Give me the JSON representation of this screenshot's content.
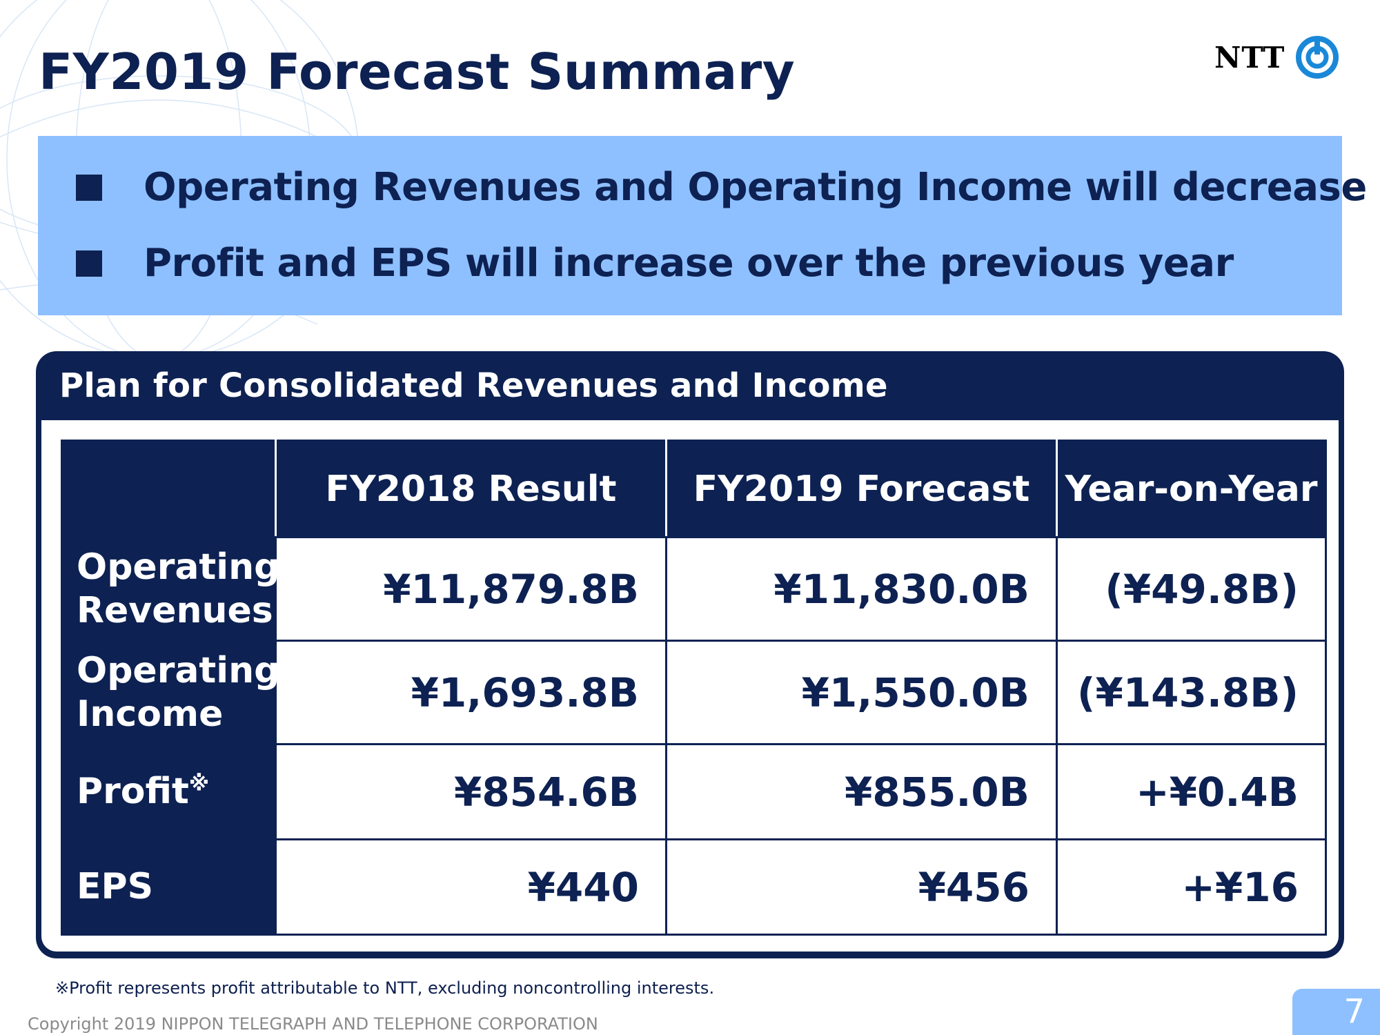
{
  "slide": {
    "title": "FY2019 Forecast Summary",
    "logo_text": "NTT",
    "bullets": [
      "Operating Revenues and Operating Income will decrease",
      "Profit and EPS will increase over the previous year"
    ],
    "plan_header": "Plan for Consolidated Revenues and Income",
    "table": {
      "columns": [
        "",
        "FY2018 Result",
        "FY2019 Forecast",
        "Year-on-Year"
      ],
      "rows": [
        {
          "label_line1": "Operating",
          "label_line2": "Revenues",
          "fy2018": "¥11,879.8B",
          "fy2019": "¥11,830.0B",
          "yoy": "(¥49.8B)"
        },
        {
          "label_line1": "Operating",
          "label_line2": "Income",
          "fy2018": "¥1,693.8B",
          "fy2019": "¥1,550.0B",
          "yoy": "(¥143.8B)"
        },
        {
          "label": "Profit",
          "label_note_mark": "※",
          "fy2018": "¥854.6B",
          "fy2019": "¥855.0B",
          "yoy": "+¥0.4B"
        },
        {
          "label": "EPS",
          "fy2018": "¥440",
          "fy2019": "¥456",
          "yoy": "+¥16"
        }
      ]
    },
    "footnote": "※Profit represents profit attributable to NTT, excluding noncontrolling interests.",
    "copyright": "Copyright 2019 NIPPON TELEGRAPH AND TELEPHONE CORPORATION",
    "page_number": "7"
  },
  "colors": {
    "navy": "#0d2152",
    "light_blue": "#8ec0ff",
    "logo_blue": "#1a88d8"
  }
}
